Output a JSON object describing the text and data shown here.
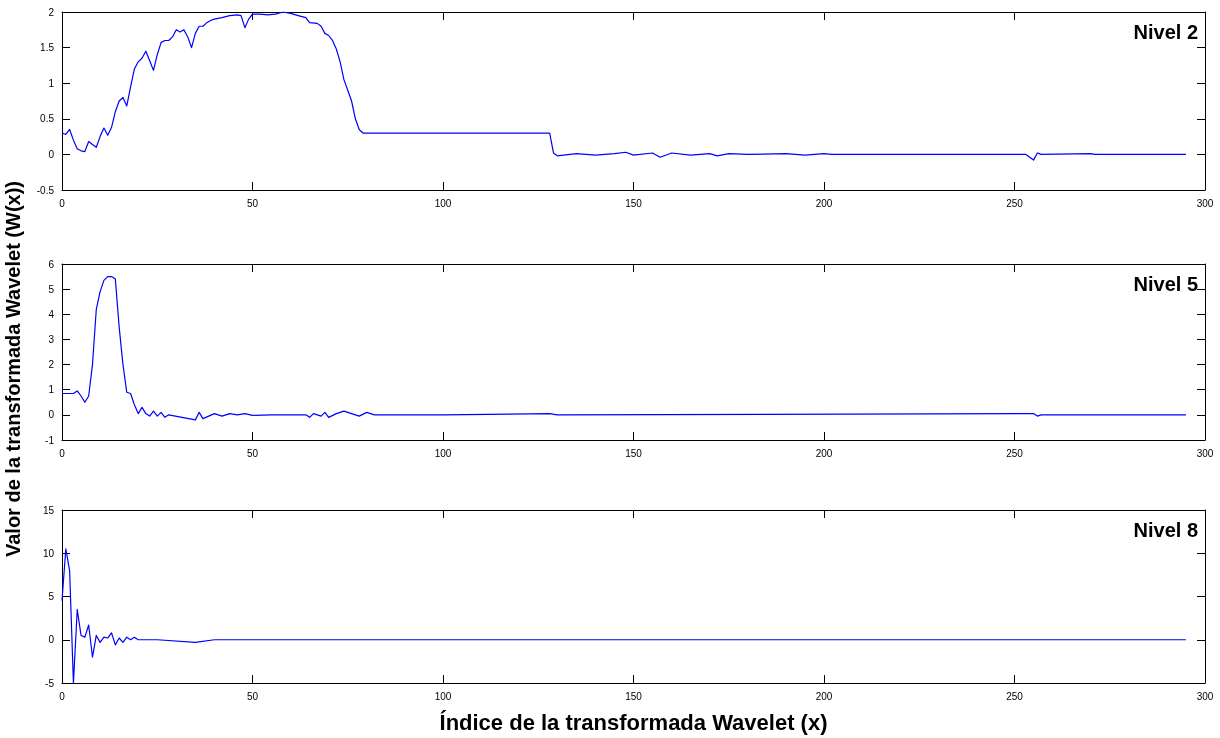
{
  "chart_data": [
    {
      "type": "line",
      "annotations": [
        "Nivel 2"
      ],
      "xlim": [
        0,
        300
      ],
      "xticks": [
        0,
        50,
        100,
        150,
        200,
        250,
        300
      ],
      "ylim": [
        -0.5,
        2
      ],
      "yticks": [
        -0.5,
        0,
        0.5,
        1,
        1.5,
        2
      ],
      "series": [
        {
          "color": "#0000ff",
          "x": [
            0,
            1,
            2,
            3,
            4,
            5,
            6,
            7,
            8,
            9,
            10,
            11,
            12,
            13,
            14,
            15,
            16,
            17,
            18,
            19,
            20,
            21,
            22,
            23,
            24,
            25,
            26,
            27,
            28,
            29,
            30,
            31,
            32,
            33,
            34,
            35,
            36,
            37,
            38,
            39,
            40,
            42,
            44,
            46,
            47,
            48,
            49,
            50,
            52,
            54,
            56,
            58,
            60,
            62,
            64,
            65,
            67,
            68,
            69,
            70,
            71,
            72,
            73,
            74,
            75,
            76,
            77,
            78,
            79,
            128,
            129,
            130,
            135,
            140,
            145,
            148,
            150,
            155,
            157,
            160,
            165,
            170,
            172,
            175,
            180,
            190,
            195,
            200,
            202,
            253,
            255,
            256,
            257,
            270,
            271,
            295
          ],
          "values": [
            0.3,
            0.28,
            0.35,
            0.2,
            0.08,
            0.05,
            0.04,
            0.18,
            0.14,
            0.1,
            0.25,
            0.37,
            0.27,
            0.38,
            0.6,
            0.75,
            0.8,
            0.68,
            0.95,
            1.2,
            1.3,
            1.35,
            1.45,
            1.32,
            1.18,
            1.4,
            1.57,
            1.6,
            1.6,
            1.65,
            1.75,
            1.72,
            1.75,
            1.65,
            1.5,
            1.7,
            1.8,
            1.8,
            1.85,
            1.88,
            1.9,
            1.92,
            1.95,
            1.96,
            1.95,
            1.78,
            1.9,
            1.97,
            1.97,
            1.96,
            1.97,
            2,
            1.98,
            1.95,
            1.92,
            1.85,
            1.84,
            1.8,
            1.7,
            1.67,
            1.6,
            1.48,
            1.3,
            1.05,
            0.9,
            0.75,
            0.5,
            0.35,
            0.3,
            0.3,
            0.02,
            -0.02,
            0.01,
            -0.01,
            0.01,
            0.03,
            -0.01,
            0.02,
            -0.04,
            0.02,
            -0.01,
            0.01,
            -0.02,
            0.01,
            0,
            0.01,
            -0.01,
            0.01,
            0,
            0,
            -0.08,
            0.02,
            0,
            0.01,
            0,
            0
          ]
        }
      ]
    },
    {
      "type": "line",
      "ylabel": "Valor de la transformada Wavelet (W(x))",
      "annotations": [
        "Nivel 5"
      ],
      "xlim": [
        0,
        300
      ],
      "xticks": [
        0,
        50,
        100,
        150,
        200,
        250,
        300
      ],
      "ylim": [
        -1,
        6
      ],
      "yticks": [
        -1,
        0,
        1,
        2,
        3,
        4,
        5,
        6
      ],
      "series": [
        {
          "color": "#0000ff",
          "x": [
            0,
            3,
            4,
            5,
            6,
            7,
            8,
            9,
            10,
            11,
            12,
            13,
            14,
            15,
            16,
            17,
            18,
            19,
            20,
            21,
            22,
            23,
            24,
            25,
            26,
            27,
            28,
            35,
            36,
            37,
            40,
            42,
            44,
            46,
            48,
            50,
            55,
            60,
            64,
            65,
            66,
            68,
            69,
            70,
            72,
            74,
            76,
            78,
            80,
            82,
            90,
            100,
            128,
            130,
            255,
            256,
            257,
            295
          ],
          "values": [
            0.85,
            0.85,
            0.95,
            0.75,
            0.5,
            0.75,
            2,
            4.2,
            4.9,
            5.35,
            5.5,
            5.5,
            5.4,
            3.5,
            2,
            0.9,
            0.85,
            0.4,
            0.05,
            0.3,
            0.05,
            -0.05,
            0.15,
            -0.05,
            0.1,
            -0.1,
            0,
            -0.2,
            0.1,
            -0.15,
            0.05,
            -0.05,
            0.05,
            0,
            0.05,
            -0.02,
            0,
            0,
            0,
            -0.1,
            0.05,
            -0.05,
            0.1,
            -0.1,
            0.05,
            0.15,
            0.05,
            -0.05,
            0.1,
            0,
            0,
            0,
            0.05,
            0,
            0.05,
            -0.05,
            0,
            0
          ]
        }
      ]
    },
    {
      "type": "line",
      "xlabel": "Índice de la transformada Wavelet (x)",
      "annotations": [
        "Nivel 8"
      ],
      "xlim": [
        0,
        300
      ],
      "xticks": [
        0,
        50,
        100,
        150,
        200,
        250,
        300
      ],
      "ylim": [
        -5,
        15
      ],
      "yticks": [
        -5,
        0,
        5,
        10,
        15
      ],
      "series": [
        {
          "color": "#0000ff",
          "x": [
            0,
            1,
            2,
            3,
            4,
            5,
            6,
            7,
            8,
            9,
            10,
            11,
            12,
            13,
            14,
            15,
            16,
            17,
            18,
            19,
            20,
            25,
            35,
            40,
            60,
            80,
            295
          ],
          "values": [
            4.5,
            10.5,
            8,
            -5,
            3.5,
            0.5,
            0.3,
            1.7,
            -2,
            0.5,
            -0.3,
            0.3,
            0.2,
            0.8,
            -0.6,
            0.2,
            -0.3,
            0.3,
            0,
            0.3,
            0,
            0,
            -0.3,
            0,
            0,
            0,
            0
          ]
        }
      ]
    }
  ]
}
